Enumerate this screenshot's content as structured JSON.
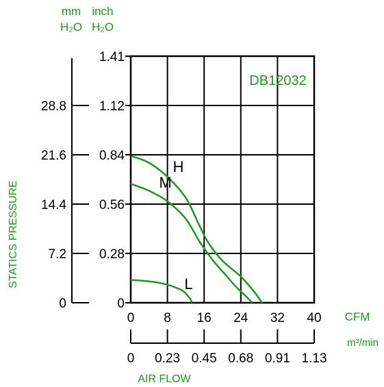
{
  "colors": {
    "accent": "#1a9a1a",
    "axis": "#000000",
    "background": "#ffffff"
  },
  "header": {
    "left_unit_top": "mm",
    "left_unit_bottom": "H₂O",
    "right_unit_top": "inch",
    "right_unit_bottom": "H₂O"
  },
  "chart_data": {
    "type": "line",
    "title": "DB12032",
    "xlabel": "AIR FLOW",
    "ylabel": "STATICS PRESSURE",
    "x_unit_primary": "CFM",
    "x_unit_secondary": "m³/min",
    "xlim": [
      0,
      40
    ],
    "ylim": [
      0,
      1.41
    ],
    "x_ticks": [
      "0",
      "8",
      "16",
      "24",
      "32",
      "40"
    ],
    "x_ticks_secondary": [
      "0",
      "0.23",
      "0.45",
      "0.68",
      "0.91",
      "1.13"
    ],
    "y_ticks_inch": [
      "0",
      "0.28",
      "0.56",
      "0.84",
      "1.12",
      "1.41"
    ],
    "y_ticks_mm": [
      "0",
      "7.2",
      "14.4",
      "21.6",
      "28.8"
    ],
    "grid": true,
    "series": [
      {
        "name": "H",
        "x": [
          0,
          4,
          8,
          12,
          15,
          17,
          20,
          24,
          27,
          28.6
        ],
        "y": [
          0.84,
          0.8,
          0.72,
          0.6,
          0.44,
          0.34,
          0.24,
          0.15,
          0.06,
          0.0
        ]
      },
      {
        "name": "M",
        "x": [
          0,
          4,
          8,
          12,
          15,
          18,
          21,
          23,
          25,
          26.5
        ],
        "y": [
          0.68,
          0.64,
          0.58,
          0.48,
          0.35,
          0.24,
          0.15,
          0.09,
          0.04,
          0.0
        ]
      },
      {
        "name": "L",
        "x": [
          0,
          3,
          6,
          9,
          11.5,
          13,
          13.3
        ],
        "y": [
          0.13,
          0.125,
          0.115,
          0.095,
          0.065,
          0.02,
          0.0
        ]
      }
    ]
  }
}
